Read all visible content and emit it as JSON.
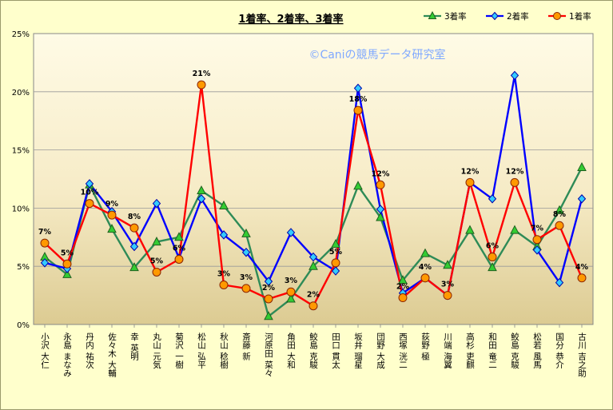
{
  "chart_data": {
    "type": "line",
    "title": "1着率、2着率、3着率",
    "watermark": "©Caniの競馬データ研究室",
    "y_ticks": [
      "0%",
      "5%",
      "10%",
      "15%",
      "20%",
      "25%"
    ],
    "ylim": [
      0,
      25
    ],
    "grid": "horizontal",
    "legend_position": "top-right",
    "categories": [
      "小沢 大仁",
      "永島 まなみ",
      "丹内 祐次",
      "佐々木 大輔",
      "幸 英明",
      "丸山 元気",
      "菊沢 一樹",
      "松山 弘平",
      "秋山 稔樹",
      "斎藤 新",
      "河原田 菜々",
      "角田 大和",
      "鮫島 克駿",
      "田口 貫太",
      "坂井 瑠星",
      "団野 大成",
      "西塚 洸二",
      "荻野 極",
      "川端 海翼",
      "高杉 吏麒",
      "和田 竜二",
      "鮫島 克駿",
      "松若 風馬",
      "国分 恭介",
      "古川 吉之助"
    ],
    "series": [
      {
        "name": "3着率",
        "color": "#2e8b57",
        "marker": "triangle",
        "marker_fill": "#33cc33",
        "values": [
          5.8,
          4.3,
          12.0,
          8.2,
          4.9,
          7.1,
          7.5,
          11.5,
          10.2,
          7.8,
          0.7,
          2.2,
          5.0,
          6.9,
          11.9,
          9.2,
          3.8,
          6.1,
          5.1,
          8.1,
          4.9,
          8.1,
          6.7,
          9.8,
          13.5
        ]
      },
      {
        "name": "2着率",
        "color": "#0000ff",
        "marker": "diamond",
        "marker_fill": "#33ccff",
        "values": [
          5.3,
          4.8,
          12.1,
          9.7,
          6.7,
          10.4,
          5.7,
          10.8,
          7.7,
          6.2,
          3.7,
          7.9,
          5.8,
          4.6,
          20.3,
          9.9,
          2.7,
          4.0,
          2.5,
          12.2,
          10.8,
          21.4,
          6.4,
          3.6,
          10.8
        ]
      },
      {
        "name": "1着率",
        "color": "#ff0000",
        "marker": "circle",
        "marker_fill": "#ff9900",
        "values": [
          7.0,
          5.2,
          10.4,
          9.4,
          8.3,
          4.5,
          5.6,
          20.6,
          3.4,
          3.1,
          2.2,
          2.8,
          1.6,
          5.3,
          18.4,
          12.0,
          2.3,
          4.0,
          2.5,
          12.2,
          5.8,
          12.2,
          7.3,
          8.5,
          4.0
        ]
      }
    ],
    "data_labels": [
      "7%",
      "5%",
      "10%",
      "9%",
      "8%",
      "5%",
      "6%",
      "21%",
      "3%",
      "3%",
      "2%",
      "3%",
      "2%",
      "5%",
      "18%",
      "12%",
      "2%",
      "4%",
      "3%",
      "12%",
      "6%",
      "12%",
      "7%",
      "8%",
      "4%"
    ]
  }
}
